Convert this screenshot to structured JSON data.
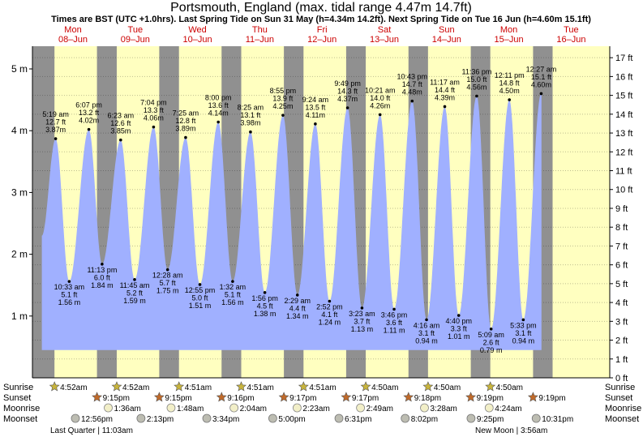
{
  "title": "Portsmouth, England (max. tidal range 4.47m 14.7ft)",
  "subtitle": "Times are BST (UTC +1.0hrs). Last Spring Tide on Sun 31 May (h=4.34m 14.2ft). Next Spring Tide on Tue 16 Jun (h=4.60m 15.1ft)",
  "colors": {
    "day_band": "#ffffc0",
    "night_band": "#909090",
    "tide_fill": "#a0b0ff",
    "accent_red": "#cc0000",
    "sun": "#c8b43c",
    "sunset": "#c06a2a",
    "moonrise": "#f2efc8",
    "moonset": "#bdbdb2"
  },
  "chart_data": {
    "type": "area",
    "title": "Portsmouth, England (max. tidal range 4.47m 14.7ft)",
    "ylabel_left_unit": "m",
    "ylabel_right_unit": "ft",
    "ylim_m": [
      0,
      5.35
    ],
    "yticks_m": [
      "1 m",
      "2 m",
      "3 m",
      "4 m",
      "5 m"
    ],
    "yticks_ft": [
      "0 ft",
      "1 ft",
      "2 ft",
      "3 ft",
      "4 ft",
      "5 ft",
      "6 ft",
      "7 ft",
      "8 ft",
      "9 ft",
      "10 ft",
      "11 ft",
      "12 ft",
      "13 ft",
      "14 ft",
      "15 ft",
      "16 ft",
      "17 ft"
    ],
    "days": [
      {
        "dow": "Mon",
        "date": "08–Jun"
      },
      {
        "dow": "Tue",
        "date": "09–Jun"
      },
      {
        "dow": "Wed",
        "date": "10–Jun"
      },
      {
        "dow": "Thu",
        "date": "11–Jun"
      },
      {
        "dow": "Fri",
        "date": "12–Jun"
      },
      {
        "dow": "Sat",
        "date": "13–Jun"
      },
      {
        "dow": "Sun",
        "date": "14–Jun"
      },
      {
        "dow": "Mon",
        "date": "15–Jun"
      },
      {
        "dow": "Tue",
        "date": "16–Jun"
      }
    ],
    "tides": [
      {
        "type": "high",
        "day": 0,
        "hour": 5.317,
        "time": "5:19 am",
        "ft": "12.7 ft",
        "m": 3.87,
        "m_label": "3.87m"
      },
      {
        "type": "low",
        "day": 0,
        "hour": 10.55,
        "time": "10:33 am",
        "ft": "5.1 ft",
        "m": 1.56,
        "m_label": "1.56 m"
      },
      {
        "type": "high",
        "day": 0,
        "hour": 18.117,
        "time": "6:07 pm",
        "ft": "13.2 ft",
        "m": 4.02,
        "m_label": "4.02m"
      },
      {
        "type": "low",
        "day": 0,
        "hour": 23.217,
        "time": "11:13 pm",
        "ft": "6.0 ft",
        "m": 1.84,
        "m_label": "1.84 m"
      },
      {
        "type": "high",
        "day": 1,
        "hour": 6.383,
        "time": "6:23 am",
        "ft": "12.6 ft",
        "m": 3.85,
        "m_label": "3.85m"
      },
      {
        "type": "low",
        "day": 1,
        "hour": 11.75,
        "time": "11:45 am",
        "ft": "5.2 ft",
        "m": 1.59,
        "m_label": "1.59 m"
      },
      {
        "type": "high",
        "day": 1,
        "hour": 19.067,
        "time": "7:04 pm",
        "ft": "13.3 ft",
        "m": 4.06,
        "m_label": "4.06m"
      },
      {
        "type": "low",
        "day": 2,
        "hour": 0.467,
        "time": "12:28 am",
        "ft": "5.7 ft",
        "m": 1.75,
        "m_label": "1.75 m"
      },
      {
        "type": "high",
        "day": 2,
        "hour": 7.417,
        "time": "7:25 am",
        "ft": "12.8 ft",
        "m": 3.89,
        "m_label": "3.89m"
      },
      {
        "type": "low",
        "day": 2,
        "hour": 12.917,
        "time": "12:55 pm",
        "ft": "5.0 ft",
        "m": 1.51,
        "m_label": "1.51 m"
      },
      {
        "type": "high",
        "day": 2,
        "hour": 20.0,
        "time": "8:00 pm",
        "ft": "13.6 ft",
        "m": 4.14,
        "m_label": "4.14m"
      },
      {
        "type": "low",
        "day": 3,
        "hour": 1.533,
        "time": "1:32 am",
        "ft": "5.1 ft",
        "m": 1.56,
        "m_label": "1.56 m"
      },
      {
        "type": "high",
        "day": 3,
        "hour": 8.417,
        "time": "8:25 am",
        "ft": "13.1 ft",
        "m": 3.98,
        "m_label": "3.98m"
      },
      {
        "type": "low",
        "day": 3,
        "hour": 13.933,
        "time": "1:56 pm",
        "ft": "4.5 ft",
        "m": 1.38,
        "m_label": "1.38 m"
      },
      {
        "type": "high",
        "day": 3,
        "hour": 20.917,
        "time": "8:55 pm",
        "ft": "13.9 ft",
        "m": 4.25,
        "m_label": "4.25m"
      },
      {
        "type": "low",
        "day": 4,
        "hour": 2.483,
        "time": "2:29 am",
        "ft": "4.4 ft",
        "m": 1.34,
        "m_label": "1.34 m"
      },
      {
        "type": "high",
        "day": 4,
        "hour": 9.4,
        "time": "9:24 am",
        "ft": "13.5 ft",
        "m": 4.11,
        "m_label": "4.11m"
      },
      {
        "type": "low",
        "day": 4,
        "hour": 14.867,
        "time": "2:52 pm",
        "ft": "4.1 ft",
        "m": 1.24,
        "m_label": "1.24 m"
      },
      {
        "type": "high",
        "day": 4,
        "hour": 21.817,
        "time": "9:49 pm",
        "ft": "14.3 ft",
        "m": 4.37,
        "m_label": "4.37m"
      },
      {
        "type": "low",
        "day": 5,
        "hour": 3.383,
        "time": "3:23 am",
        "ft": "3.7 ft",
        "m": 1.13,
        "m_label": "1.13 m"
      },
      {
        "type": "high",
        "day": 5,
        "hour": 10.35,
        "time": "10:21 am",
        "ft": "14.0 ft",
        "m": 4.26,
        "m_label": "4.26m"
      },
      {
        "type": "low",
        "day": 5,
        "hour": 15.767,
        "time": "3:46 pm",
        "ft": "3.6 ft",
        "m": 1.11,
        "m_label": "1.11 m"
      },
      {
        "type": "high",
        "day": 5,
        "hour": 22.717,
        "time": "10:43 pm",
        "ft": "14.7 ft",
        "m": 4.48,
        "m_label": "4.48m"
      },
      {
        "type": "low",
        "day": 6,
        "hour": 4.267,
        "time": "4:16 am",
        "ft": "3.1 ft",
        "m": 0.94,
        "m_label": "0.94 m"
      },
      {
        "type": "high",
        "day": 6,
        "hour": 11.283,
        "time": "11:17 am",
        "ft": "14.4 ft",
        "m": 4.39,
        "m_label": "4.39m"
      },
      {
        "type": "low",
        "day": 6,
        "hour": 16.667,
        "time": "4:40 pm",
        "ft": "3.3 ft",
        "m": 1.01,
        "m_label": "1.01 m"
      },
      {
        "type": "high",
        "day": 6,
        "hour": 23.6,
        "time": "11:36 pm",
        "ft": "15.0 ft",
        "m": 4.56,
        "m_label": "4.56m"
      },
      {
        "type": "low",
        "day": 7,
        "hour": 5.15,
        "time": "5:09 am",
        "ft": "2.6 ft",
        "m": 0.79,
        "m_label": "0.79 m"
      },
      {
        "type": "high",
        "day": 7,
        "hour": 12.183,
        "time": "12:11 pm",
        "ft": "14.8 ft",
        "m": 4.5,
        "m_label": "4.50m"
      },
      {
        "type": "low",
        "day": 7,
        "hour": 17.55,
        "time": "5:33 pm",
        "ft": "3.1 ft",
        "m": 0.94,
        "m_label": "0.94 m"
      },
      {
        "type": "high",
        "day": 8,
        "hour": 0.45,
        "time": "12:27 am",
        "ft": "15.1 ft",
        "m": 4.6,
        "m_label": "4.60m"
      }
    ],
    "start": {
      "day": 0,
      "hour": 0.0,
      "m": 2.3
    },
    "end_hour": 0.55,
    "sunrise": {
      "label": "Sunrise",
      "hours": [
        4.867,
        4.867,
        4.85,
        4.85,
        4.85,
        4.833,
        4.833,
        4.833
      ],
      "times": [
        "4:52am",
        "4:52am",
        "4:51am",
        "4:51am",
        "4:51am",
        "4:50am",
        "4:50am",
        "4:50am"
      ]
    },
    "sunset": {
      "label": "Sunset",
      "hours": [
        21.25,
        21.25,
        21.267,
        21.283,
        21.283,
        21.3,
        21.317,
        21.317
      ],
      "times": [
        "9:15pm",
        "9:15pm",
        "9:16pm",
        "9:17pm",
        "9:17pm",
        "9:18pm",
        "9:19pm",
        "9:19pm"
      ]
    },
    "moonrise": {
      "label": "Moonrise",
      "events": [
        {
          "day": 1,
          "hour": 1.6,
          "time": "1:36am"
        },
        {
          "day": 2,
          "hour": 1.8,
          "time": "1:48am"
        },
        {
          "day": 3,
          "hour": 2.067,
          "time": "2:04am"
        },
        {
          "day": 4,
          "hour": 2.383,
          "time": "2:23am"
        },
        {
          "day": 5,
          "hour": 2.817,
          "time": "2:49am"
        },
        {
          "day": 6,
          "hour": 3.467,
          "time": "3:28am"
        },
        {
          "day": 7,
          "hour": 4.4,
          "time": "4:24am"
        }
      ]
    },
    "moonset": {
      "label": "Moonset",
      "events": [
        {
          "day": 0,
          "hour": 12.933,
          "time": "12:56pm"
        },
        {
          "day": 1,
          "hour": 14.217,
          "time": "2:13pm"
        },
        {
          "day": 2,
          "hour": 15.567,
          "time": "3:34pm"
        },
        {
          "day": 3,
          "hour": 17.0,
          "time": "5:00pm"
        },
        {
          "day": 4,
          "hour": 18.517,
          "time": "6:31pm"
        },
        {
          "day": 5,
          "hour": 20.033,
          "time": "8:02pm"
        },
        {
          "day": 6,
          "hour": 21.417,
          "time": "9:25pm"
        },
        {
          "day": 7,
          "hour": 22.517,
          "time": "10:31pm"
        }
      ]
    },
    "moon_phases": [
      "Last Quarter | 11:03am",
      "New Moon | 3:56am"
    ]
  }
}
